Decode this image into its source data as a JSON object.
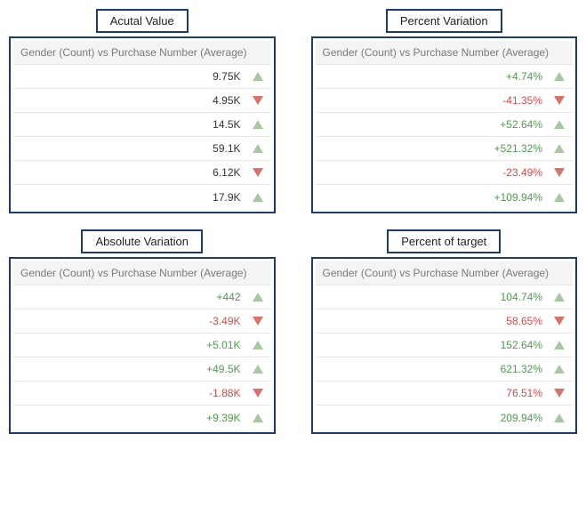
{
  "colors": {
    "border": "#1e3a6e",
    "headerBg": "#f4f4f4",
    "headerText": "#7a7a7a",
    "rowBorder": "#e5e5e5",
    "upIcon": "#a7c8a0",
    "downIcon": "#d9736a",
    "upText": "#4f9a4f",
    "downText": "#d44a4a",
    "neutralText": "#333333"
  },
  "panels": [
    {
      "id": "actual",
      "title": "Acutal Value",
      "header": "Gender (Count) vs Purchase Number (Average)",
      "valueColorMode": "neutral",
      "rows": [
        {
          "value": "9.75K",
          "dir": "up"
        },
        {
          "value": "4.95K",
          "dir": "down"
        },
        {
          "value": "14.5K",
          "dir": "up"
        },
        {
          "value": "59.1K",
          "dir": "up"
        },
        {
          "value": "6.12K",
          "dir": "down"
        },
        {
          "value": "17.9K",
          "dir": "up"
        }
      ]
    },
    {
      "id": "percent-variation",
      "title": "Percent Variation",
      "header": "Gender (Count) vs Purchase Number (Average)",
      "valueColorMode": "byDir",
      "rows": [
        {
          "value": "+4.74%",
          "dir": "up"
        },
        {
          "value": "-41.35%",
          "dir": "down"
        },
        {
          "value": "+52.64%",
          "dir": "up"
        },
        {
          "value": "+521.32%",
          "dir": "up"
        },
        {
          "value": "-23.49%",
          "dir": "down"
        },
        {
          "value": "+109.94%",
          "dir": "up"
        }
      ]
    },
    {
      "id": "absolute-variation",
      "title": "Absolute Variation",
      "header": "Gender (Count) vs Purchase Number (Average)",
      "valueColorMode": "byDir",
      "rows": [
        {
          "value": "+442",
          "dir": "up"
        },
        {
          "value": "-3.49K",
          "dir": "down"
        },
        {
          "value": "+5.01K",
          "dir": "up"
        },
        {
          "value": "+49.5K",
          "dir": "up"
        },
        {
          "value": "-1.88K",
          "dir": "down"
        },
        {
          "value": "+9.39K",
          "dir": "up"
        }
      ]
    },
    {
      "id": "percent-of-target",
      "title": "Percent of target",
      "header": "Gender (Count) vs Purchase Number (Average)",
      "valueColorMode": "byDir",
      "rows": [
        {
          "value": "104.74%",
          "dir": "up"
        },
        {
          "value": "58.65%",
          "dir": "down"
        },
        {
          "value": "152.64%",
          "dir": "up"
        },
        {
          "value": "621.32%",
          "dir": "up"
        },
        {
          "value": "76.51%",
          "dir": "down"
        },
        {
          "value": "209.94%",
          "dir": "up"
        }
      ]
    }
  ]
}
